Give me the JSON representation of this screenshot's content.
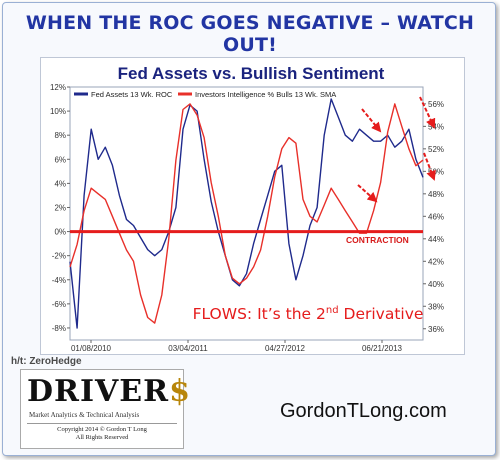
{
  "headline": "WHEN THE ROC GOES NEGATIVE – WATCH OUT!",
  "credit": "h/t: ZeroHedge",
  "logo": {
    "word_main": "DRIVER",
    "word_dollar": "$",
    "tagline": "Market Analytics & Technical Analysis",
    "copyright_1": "Copyright 2014 © Gordon T Long",
    "copyright_2": "All Rights Reserved"
  },
  "website": "GordonTLong.com",
  "colors": {
    "fed_line": "#1f2a8c",
    "sentiment_line": "#e8302a",
    "zero_line": "#e51c1c",
    "headline": "#2235a3"
  },
  "chart_data": {
    "type": "line",
    "title": "Fed Assets vs. Bullish Sentiment",
    "x_ticks": [
      "01/08/2010",
      "03/04/2011",
      "04/27/2012",
      "06/21/2013"
    ],
    "x_range": [
      0,
      100
    ],
    "y_left": {
      "ticks": [
        "12%",
        "10%",
        "8%",
        "6%",
        "4%",
        "2%",
        "0%",
        "-2%",
        "-4%",
        "-6%",
        "-8%"
      ],
      "range": [
        -9,
        12
      ]
    },
    "y_right": {
      "ticks": [
        "56%",
        "54%",
        "52%",
        "50%",
        "48%",
        "46%",
        "44%",
        "42%",
        "40%",
        "38%",
        "36%"
      ],
      "range": [
        35,
        57.5
      ]
    },
    "legend_position": "top",
    "annotations": {
      "contraction": "CONTRACTION",
      "flows_prefix": "FLOWS: It’s the 2",
      "flows_sup": "nd",
      "flows_suffix": " Derivative"
    },
    "series": [
      {
        "name": "Fed Assets 13 Wk. ROC",
        "axis": "left",
        "color": "#1f2a8c",
        "x": [
          0,
          2,
          4,
          6,
          8,
          10,
          12,
          14,
          16,
          18,
          20,
          22,
          24,
          26,
          28,
          30,
          32,
          34,
          36,
          38,
          40,
          42,
          44,
          46,
          48,
          50,
          52,
          54,
          56,
          58,
          60,
          62,
          64,
          66,
          68,
          70,
          72,
          74,
          76,
          78,
          80,
          82,
          84,
          86,
          88,
          90,
          92,
          94,
          96,
          98,
          100
        ],
        "y": [
          -2.5,
          -8.0,
          3.0,
          8.5,
          6.0,
          7.0,
          5.5,
          3.0,
          1.0,
          0.5,
          -0.5,
          -1.5,
          -2.0,
          -1.5,
          0.0,
          2.0,
          8.5,
          10.5,
          10.0,
          6.0,
          2.5,
          0.0,
          -2.0,
          -4.0,
          -4.5,
          -3.5,
          -1.0,
          1.0,
          3.0,
          5.0,
          5.5,
          -1.0,
          -4.0,
          -2.0,
          0.5,
          2.0,
          8.0,
          11.0,
          9.5,
          8.0,
          7.5,
          8.5,
          8.0,
          7.5,
          7.5,
          8.0,
          7.0,
          7.5,
          8.5,
          6.0,
          4.5
        ]
      },
      {
        "name": "Investors Intelligence % Bulls 13 Wk. SMA",
        "axis": "right",
        "color": "#e8302a",
        "x": [
          0,
          2,
          4,
          6,
          8,
          10,
          12,
          14,
          16,
          18,
          20,
          22,
          24,
          26,
          28,
          30,
          32,
          34,
          36,
          38,
          40,
          42,
          44,
          46,
          48,
          50,
          52,
          54,
          56,
          58,
          60,
          62,
          64,
          66,
          68,
          70,
          72,
          74,
          76,
          78,
          80,
          82,
          84,
          86,
          88,
          90,
          92,
          94,
          96,
          98,
          100
        ],
        "y": [
          41.5,
          43.5,
          46.5,
          48.5,
          48.0,
          47.5,
          46.0,
          44.5,
          43.0,
          42.0,
          39.0,
          37.0,
          36.5,
          39.0,
          44.0,
          51.0,
          55.5,
          56.0,
          55.0,
          53.0,
          49.0,
          46.0,
          42.5,
          40.5,
          40.0,
          40.5,
          41.5,
          43.0,
          46.0,
          49.5,
          52.0,
          53.0,
          52.5,
          47.5,
          46.0,
          45.5,
          47.0,
          48.5,
          47.5,
          46.5,
          45.5,
          44.5,
          44.5,
          46.5,
          49.0,
          53.5,
          56.0,
          54.0,
          52.0,
          50.5,
          51.0
        ]
      }
    ]
  }
}
